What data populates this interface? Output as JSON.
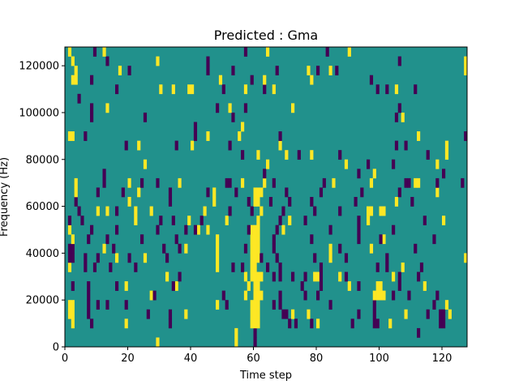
{
  "chart_data": {
    "type": "heatmap",
    "title": "Predicted : Gma",
    "xlabel": "Time step",
    "ylabel": "Frequency (Hz)",
    "xlim": [
      0,
      128
    ],
    "ylim": [
      0,
      128000
    ],
    "n_cols": 128,
    "n_rows": 32,
    "row_height_hz": 4000,
    "xticks": [
      "0",
      "20",
      "40",
      "60",
      "80",
      "100",
      "120"
    ],
    "xtick_values": [
      0,
      20,
      40,
      60,
      80,
      100,
      120
    ],
    "yticks": [
      "0",
      "20000",
      "40000",
      "60000",
      "80000",
      "100000",
      "120000"
    ],
    "ytick_values": [
      0,
      20000,
      40000,
      60000,
      80000,
      100000,
      120000
    ],
    "colors": {
      "background": "#21918c",
      "high": "#fde725",
      "low": "#440154"
    },
    "value_map": {
      "background": 0,
      "high": 1,
      "low": -1
    },
    "rows": [
      {
        "y": [
          29,
          54
        ],
        "p": [
          60
        ]
      },
      {
        "y": [
          54
        ],
        "p": [
          60,
          112
        ]
      },
      {
        "y": [
          2,
          19,
          59,
          60,
          61,
          80,
          103
        ],
        "p": [
          8,
          33,
          71,
          73,
          78,
          91,
          98,
          99,
          119,
          120
        ]
      },
      {
        "y": [
          1,
          2,
          38,
          59,
          60,
          61,
          72,
          77,
          108,
          122
        ],
        "p": [
          7,
          26,
          33,
          69,
          70,
          93,
          98,
          115,
          119,
          120
        ]
      },
      {
        "y": [
          1,
          2,
          48,
          59,
          60,
          61,
          121
        ],
        "p": [
          7,
          10,
          13,
          19,
          51,
          66,
          68,
          84,
          98,
          117
        ]
      },
      {
        "y": [
          27,
          57,
          60,
          61,
          62,
          98,
          99,
          100,
          101
        ],
        "p": [
          7,
          28,
          50,
          68,
          76,
          80,
          104,
          109,
          118
        ]
      },
      {
        "y": [
          19,
          35,
          58,
          60,
          61,
          90,
          99,
          100,
          114
        ],
        "p": [
          2,
          7,
          16,
          34,
          75,
          81,
          93,
          106
        ]
      },
      {
        "y": [
          32,
          57,
          59,
          60,
          61,
          62,
          79,
          80,
          87,
          104
        ],
        "p": [
          36,
          66,
          68,
          72,
          76,
          81,
          89,
          106,
          112
        ]
      },
      {
        "y": [
          1,
          48,
          59,
          60,
          107
        ],
        "p": [
          6,
          9,
          14,
          22,
          53,
          56,
          64,
          68,
          81,
          99,
          102,
          113
        ]
      },
      {
        "y": [
          16,
          25,
          48,
          59,
          60,
          61,
          84,
          127
        ],
        "p": [
          1,
          2,
          6,
          10,
          20,
          32,
          62,
          67,
          79,
          89,
          102
        ]
      },
      {
        "y": [
          12,
          38,
          48,
          59,
          60,
          61,
          84,
          97
        ],
        "p": [
          1,
          2,
          15,
          31,
          36,
          57,
          66,
          87,
          111
        ]
      },
      {
        "y": [
          2,
          48,
          59,
          60,
          61,
          101
        ],
        "p": [
          7,
          13,
          24,
          35,
          66,
          78,
          93,
          100,
          117
        ]
      },
      {
        "y": [
          1,
          42,
          45,
          59,
          60,
          61,
          69
        ],
        "p": [
          8,
          16,
          29,
          38,
          41,
          58,
          67,
          84,
          93,
          104
        ]
      },
      {
        "y": [
          22,
          39,
          51,
          61,
          71,
          96,
          120
        ],
        "p": [
          1,
          5,
          30,
          34,
          43,
          68,
          76,
          93,
          114
        ]
      },
      {
        "y": [
          10,
          13,
          22,
          27,
          44,
          62,
          96,
          97,
          100,
          101
        ],
        "p": [
          4,
          16,
          52,
          59,
          69,
          79,
          87
        ]
      },
      {
        "y": [
          20,
          47,
          60,
          61,
          105
        ],
        "p": [
          3,
          33,
          58,
          65,
          71,
          78,
          92,
          110
        ]
      },
      {
        "y": [
          3,
          23,
          47,
          60,
          61,
          62,
          118
        ],
        "p": [
          10,
          18,
          33,
          45,
          54,
          70,
          81,
          94,
          106
        ]
      },
      {
        "y": [
          3,
          20,
          36,
          56,
          63,
          85,
          97,
          111,
          112
        ],
        "p": [
          12,
          24,
          29,
          51,
          52,
          66,
          82,
          108,
          109,
          118,
          126
        ]
      },
      {
        "y": [
          98
        ],
        "p": [
          12,
          63,
          93,
          120
        ]
      },
      {
        "y": [
          25,
          64,
          89,
          118
        ],
        "p": [
          96,
          104
        ]
      },
      {
        "y": [
          61,
          70,
          78,
          121
        ],
        "p": [
          56,
          74,
          87,
          115
        ]
      },
      {
        "y": [
          23,
          40,
          68,
          121
        ],
        "p": [
          19,
          35,
          52,
          105,
          108
        ]
      },
      {
        "y": [
          1,
          2,
          45,
          55,
          112
        ],
        "p": [
          6,
          41,
          68,
          127
        ]
      },
      {
        "y": [
          56
        ],
        "p": [
          41
        ]
      },
      {
        "y": [
          107
        ],
        "p": [
          8,
          25,
          53,
          105
        ]
      },
      {
        "y": [
          13,
          52,
          72
        ],
        "p": [
          8,
          48,
          57,
          106
        ]
      },
      {
        "y": [],
        "p": [
          4
        ]
      },
      {
        "y": [
          30,
          34,
          39,
          40,
          57,
          66,
          105
        ],
        "p": [
          16,
          50,
          63,
          99,
          102,
          111
        ]
      },
      {
        "y": [
          2,
          3,
          49,
          63,
          78
        ],
        "p": [
          8,
          59,
          97
        ]
      },
      {
        "y": [
          3,
          17,
          77,
          84,
          127
        ],
        "p": [
          20,
          45,
          53,
          67,
          80,
          86
        ]
      },
      {
        "y": [
          2,
          29,
          127
        ],
        "p": [
          13,
          45,
          106
        ]
      },
      {
        "y": [
          1,
          12,
          64,
          90
        ],
        "p": [
          9,
          57,
          83
        ]
      }
    ]
  }
}
